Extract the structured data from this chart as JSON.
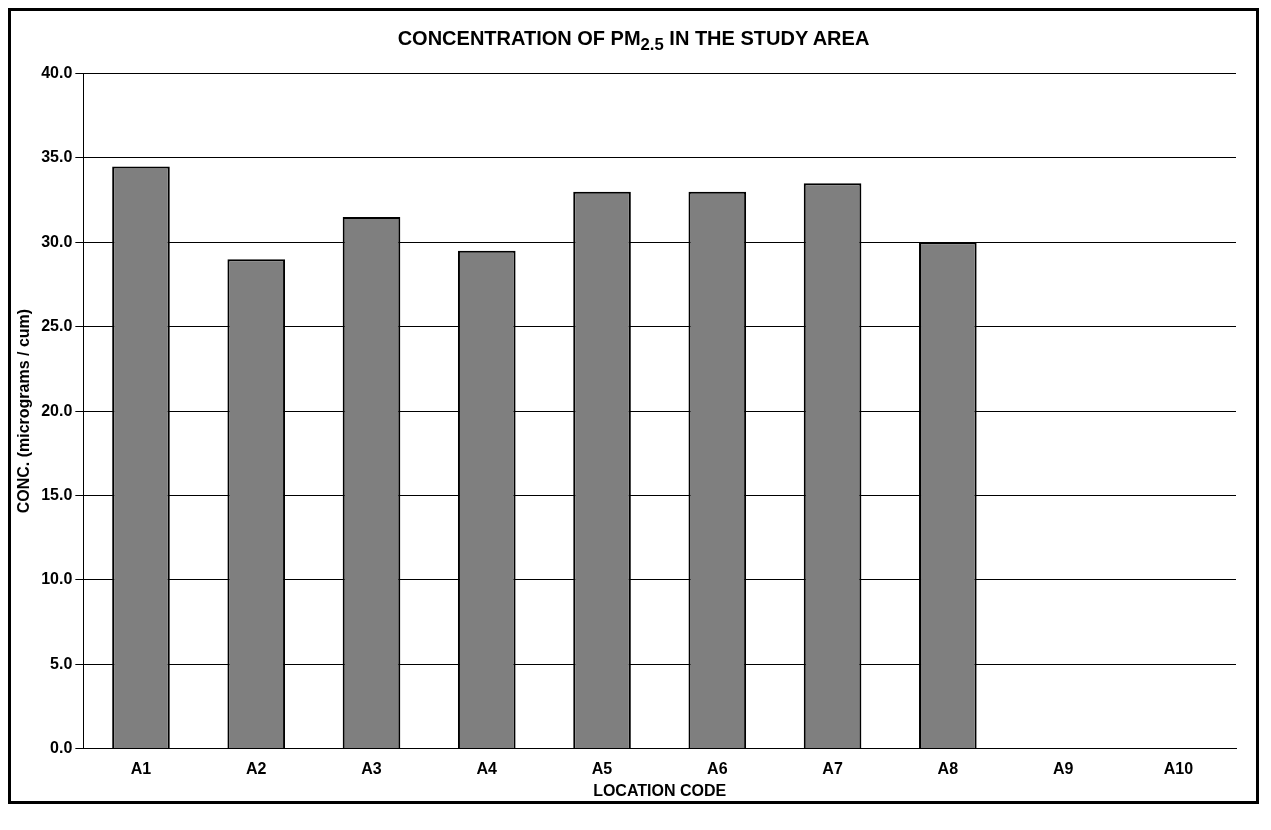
{
  "chart_data": {
    "type": "bar",
    "title": "CONCENTRATION OF PM$_{2.5}$ IN THE STUDY AREA",
    "xlabel": "LOCATION CODE",
    "ylabel": "CONC. (micrograms / cum)",
    "categories": [
      "A1",
      "A2",
      "A3",
      "A4",
      "A5",
      "A6",
      "A7",
      "A8",
      "A9",
      "A10"
    ],
    "values": [
      34.5,
      29.0,
      31.5,
      29.5,
      33.0,
      33.0,
      33.5,
      30.0,
      null,
      null
    ],
    "color": "#7f7f7f",
    "ylim": [
      0,
      40
    ],
    "yticks": [
      {
        "value": 0,
        "label": "0.0"
      },
      {
        "value": 5,
        "label": "5.0"
      },
      {
        "value": 10,
        "label": "10.0"
      },
      {
        "value": 15,
        "label": "15.0"
      },
      {
        "value": 20,
        "label": "20.0"
      },
      {
        "value": 25,
        "label": "25.0"
      },
      {
        "value": 30,
        "label": "30.0"
      },
      {
        "value": 35,
        "label": "35.0"
      },
      {
        "value": 40,
        "label": "40.0"
      }
    ],
    "grid": "y",
    "legend": false
  }
}
